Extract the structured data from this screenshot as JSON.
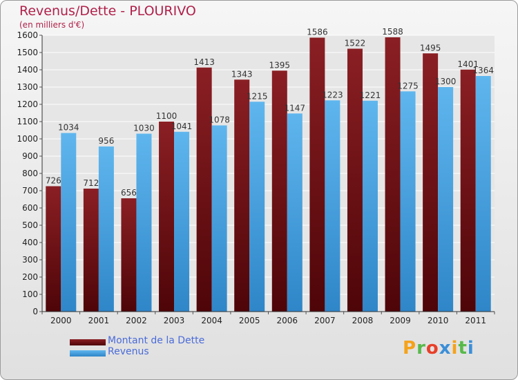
{
  "chart_data": {
    "type": "bar",
    "title": "Revenus/Dette - PLOURIVO",
    "subtitle": "(en milliers d'€)",
    "categories": [
      "2000",
      "2001",
      "2002",
      "2003",
      "2004",
      "2005",
      "2006",
      "2007",
      "2008",
      "2009",
      "2010",
      "2011"
    ],
    "series": [
      {
        "name": "Montant de la Dette",
        "color": "#6e1418",
        "values": [
          726,
          712,
          656,
          1100,
          1413,
          1343,
          1395,
          1586,
          1522,
          1588,
          1495,
          1401
        ]
      },
      {
        "name": "Revenus",
        "color": "#4aa8e8",
        "values": [
          1034,
          956,
          1030,
          1041,
          1078,
          1215,
          1147,
          1223,
          1221,
          1275,
          1300,
          1364
        ]
      }
    ],
    "ylim": [
      0,
      1600
    ],
    "ytick_step": 100,
    "grid": true,
    "legend_position": "bottom-left"
  },
  "brand": {
    "logo_text": "Proxiti",
    "colors": [
      "#f5a21a",
      "#58b94a",
      "#e8402a",
      "#3b8fd8",
      "#f5a21a",
      "#58b94a",
      "#3b8fd8"
    ]
  }
}
